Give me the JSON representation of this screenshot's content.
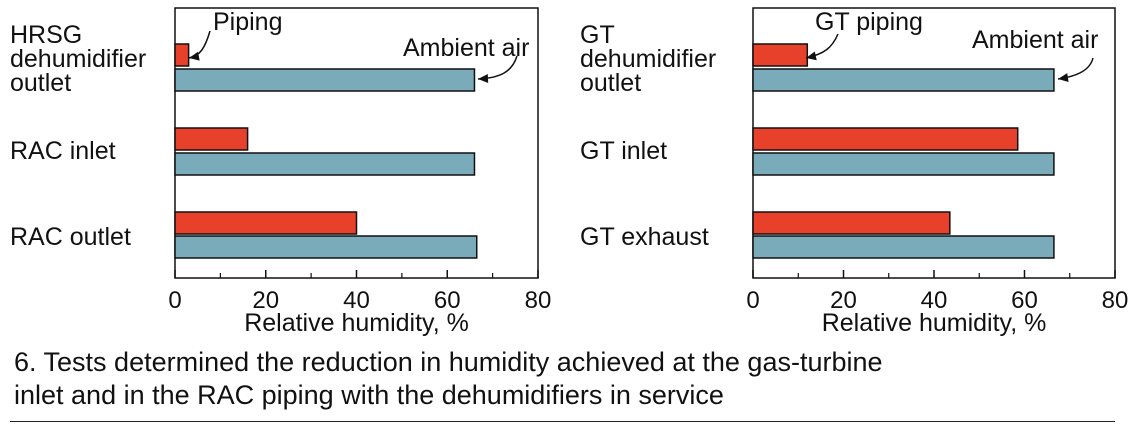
{
  "colors": {
    "piping": "#e8412b",
    "ambient": "#7aabbb",
    "axis": "#111111"
  },
  "chart_data": [
    {
      "type": "bar",
      "orientation": "horizontal",
      "categories": [
        [
          "HRSG",
          "dehumidifier",
          "outlet"
        ],
        [
          "RAC inlet"
        ],
        [
          "RAC outlet"
        ]
      ],
      "series": [
        {
          "name": "Piping",
          "values": [
            3,
            16,
            40
          ]
        },
        {
          "name": "Ambient air",
          "values": [
            66,
            66,
            66.5
          ]
        }
      ],
      "xlabel": "Relative humidity, %",
      "xlim": [
        0,
        80
      ],
      "xticks": [
        0,
        20,
        40,
        60,
        80
      ],
      "grid": false
    },
    {
      "type": "bar",
      "orientation": "horizontal",
      "categories": [
        [
          "GT",
          "dehumidifier",
          "outlet"
        ],
        [
          "GT inlet"
        ],
        [
          "GT exhaust"
        ]
      ],
      "series": [
        {
          "name": "GT piping",
          "values": [
            12,
            58.5,
            43.5
          ]
        },
        {
          "name": "Ambient air",
          "values": [
            66.5,
            66.5,
            66.5
          ]
        }
      ],
      "xlabel": "Relative humidity, %",
      "xlim": [
        0,
        80
      ],
      "xticks": [
        0,
        20,
        40,
        60,
        80
      ],
      "grid": false
    }
  ],
  "caption": {
    "line1": "6. Tests determined the reduction in humidity achieved at the gas-turbine",
    "line2": "inlet and in the RAC piping with the dehumidifiers in service"
  }
}
